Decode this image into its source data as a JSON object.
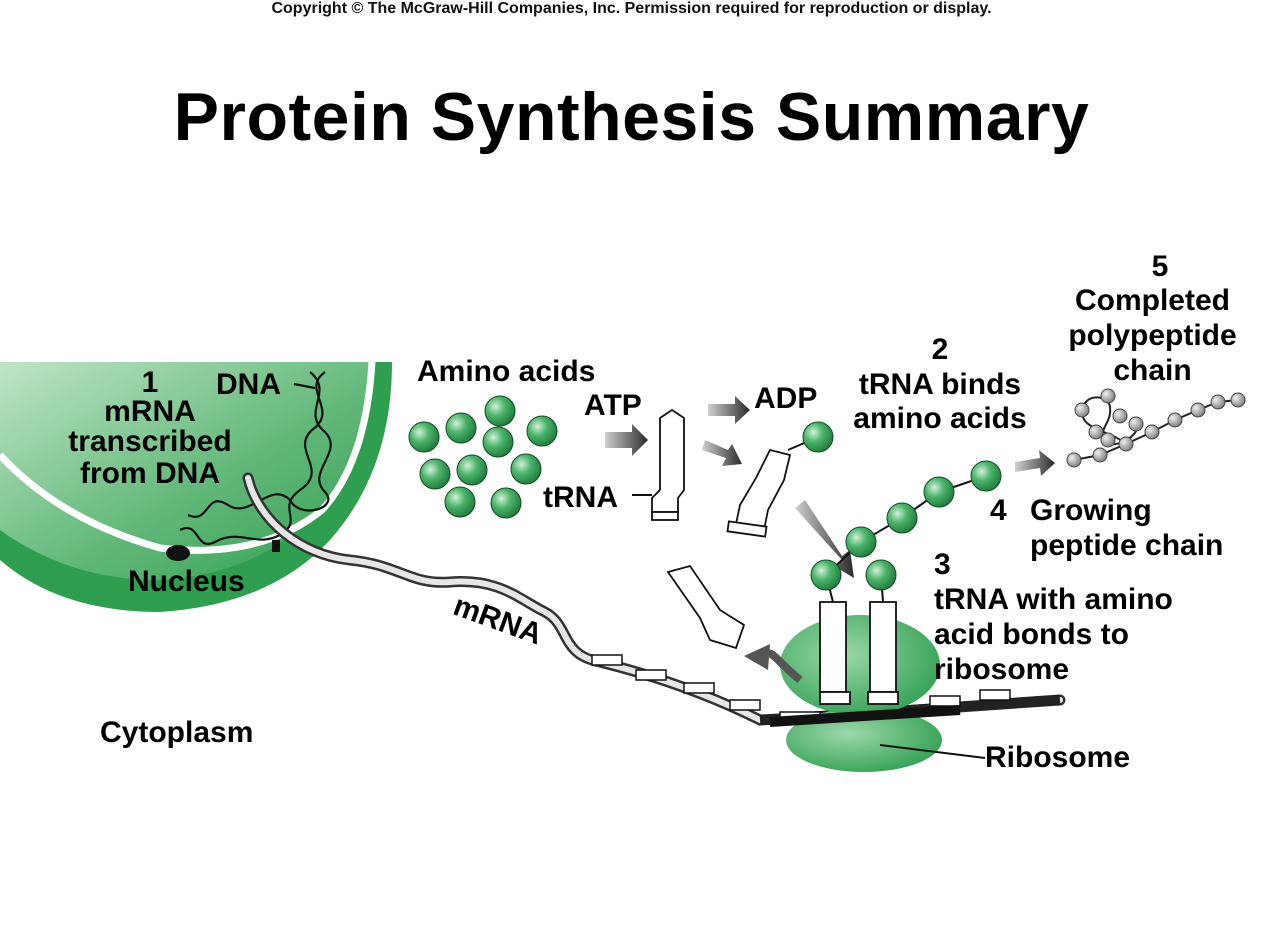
{
  "copyright": "Copyright © The McGraw-Hill Companies, Inc. Permission required for reproduction or display.",
  "title": "Protein Synthesis Summary",
  "labels": {
    "step1_num": "1",
    "step1_l1": "mRNA",
    "step1_l2": "transcribed",
    "step1_l3": "from DNA",
    "dna": "DNA",
    "nucleus": "Nucleus",
    "cytoplasm": "Cytoplasm",
    "amino_acids": "Amino acids",
    "atp": "ATP",
    "adp": "ADP",
    "trna": "tRNA",
    "step2_num": "2",
    "step2_l1": "tRNA binds",
    "step2_l2": "amino acids",
    "step3_num": "3",
    "step3_l1": "tRNA with amino",
    "step3_l2": "acid bonds to",
    "step3_l3": "ribosome",
    "step4_num": "4",
    "step4_l1": "Growing",
    "step4_l2": "peptide chain",
    "step5_num": "5",
    "step5_l1": "Completed",
    "step5_l2": "polypeptide",
    "step5_l3": "chain",
    "mrna": "mRNA",
    "ribosome": "Ribosome"
  },
  "colors": {
    "nucleus_fill": "#2e9e4f",
    "nucleus_light": "#a9d9b0",
    "amino_acid": "#2f9a4c",
    "amino_acid_light": "#cfeed6",
    "ribosome": "#3aa85c",
    "gray_bead": "#9a9a9a"
  }
}
